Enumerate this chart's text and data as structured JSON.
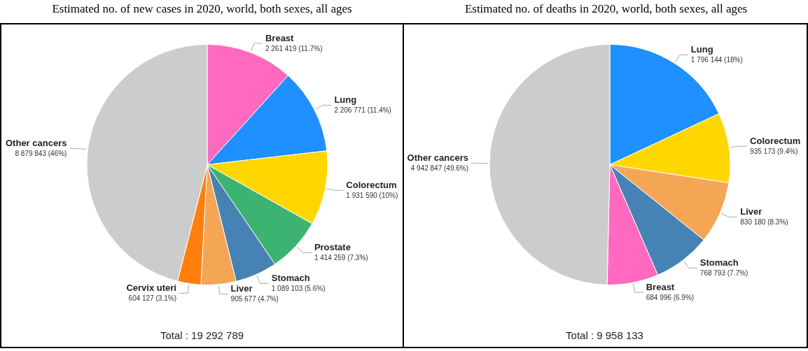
{
  "chart_data": [
    {
      "type": "pie",
      "title": "Estimated no. of new cases in 2020, world, both sexes, all ages",
      "categories": [
        "Breast",
        "Lung",
        "Colorectum",
        "Prostate",
        "Stomach",
        "Liver",
        "Cervix uteri",
        "Other cancers"
      ],
      "values": [
        2261419,
        2206771,
        1931590,
        1414259,
        1089103,
        905677,
        604127,
        8879843
      ],
      "colors": [
        "#ff69c0",
        "#1e90ff",
        "#ffd700",
        "#3cb371",
        "#4682b4",
        "#f4a655",
        "#ff7f0e",
        "#cccccc"
      ],
      "value_labels": [
        "2 261 419 (11.7%)",
        "2 206 771 (11.4%)",
        "1 931 590 (10%)",
        "1 414 259 (7.3%)",
        "1 089 103 (5.6%)",
        "905 677 (4.7%)",
        "604 127 (3.1%)",
        "8 879 843 (46%)"
      ],
      "annotations": [
        "Total : 19 292 789"
      ]
    },
    {
      "type": "pie",
      "title": "Estimated no. of deaths in 2020, world, both sexes, all ages",
      "categories": [
        "Lung",
        "Colorectum",
        "Liver",
        "Stomach",
        "Breast",
        "Other cancers"
      ],
      "values": [
        1796144,
        935173,
        830180,
        768793,
        684996,
        4942847
      ],
      "colors": [
        "#1e90ff",
        "#ffd700",
        "#f4a655",
        "#4682b4",
        "#ff69c0",
        "#cccccc"
      ],
      "value_labels": [
        "1 796 144 (18%)",
        "935 173 (9.4%)",
        "830 180 (8.3%)",
        "768 793 (7.7%)",
        "684 996 (6.9%)",
        "4 942 847 (49.6%)"
      ],
      "annotations": [
        "Total : 9 958 133"
      ]
    }
  ]
}
